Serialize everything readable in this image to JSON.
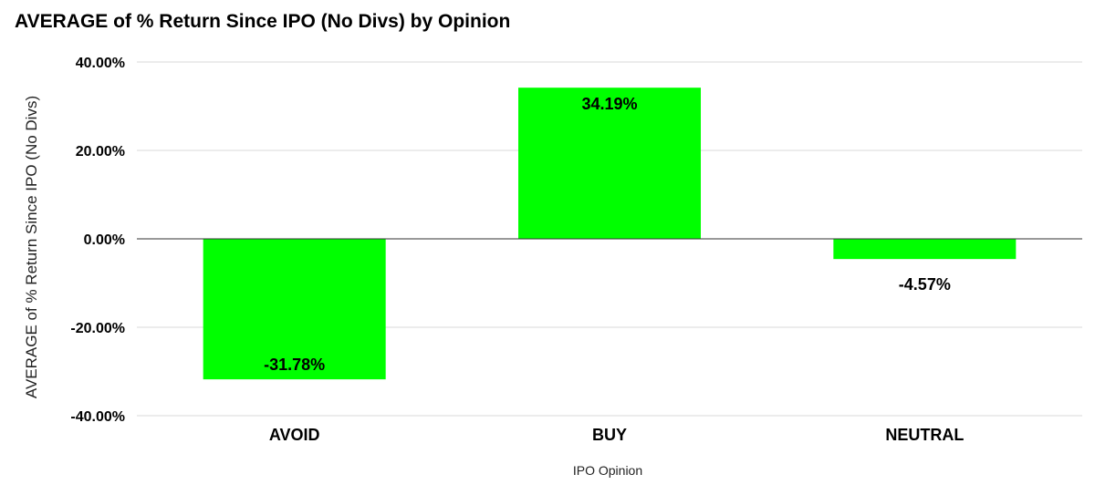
{
  "chart_data": {
    "type": "bar",
    "title": "AVERAGE of % Return Since IPO (No Divs) by Opinion",
    "xlabel": "IPO Opinion",
    "ylabel": "AVERAGE of % Return Since IPO (No Divs)",
    "categories": [
      "AVOID",
      "BUY",
      "NEUTRAL"
    ],
    "values": [
      -31.78,
      34.19,
      -4.57
    ],
    "data_labels": [
      "-31.78%",
      "34.19%",
      "-4.57%"
    ],
    "ylim": [
      -40,
      40
    ],
    "yticks": [
      40,
      20,
      0,
      -20,
      -40
    ],
    "ytick_labels": [
      "40.00%",
      "20.00%",
      "0.00%",
      "-20.00%",
      "-40.00%"
    ],
    "grid": true,
    "legend": "none",
    "bar_color": "#00ff00"
  }
}
